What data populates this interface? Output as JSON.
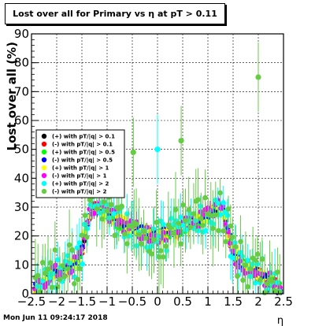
{
  "title": "Lost over all for Primary vs   η at pT > 0.11",
  "footer_date": "Mon Jun 11 09:24:17 2018",
  "colors": {
    "black": "#000000",
    "red": "#ff0000",
    "green": "#00ff00",
    "blue": "#0000ff",
    "yellow": "#ffff00",
    "magenta": "#ff00ff",
    "cyan": "#00ffff",
    "olive": "#66cc44"
  },
  "chart_data": {
    "type": "scatter",
    "title": "Lost over all for Primary vs   η at pT > 0.11",
    "xlabel": "η",
    "ylabel": "Lost over all (%)",
    "xlim": [
      -2.5,
      2.5
    ],
    "ylim": [
      0,
      90
    ],
    "x_ticks": [
      -2.5,
      -2,
      -1.5,
      -1,
      -0.5,
      0,
      0.5,
      1,
      1.5,
      2,
      2.5
    ],
    "x_tick_labels": [
      "−2.5",
      "−2",
      "−1.5",
      "−1",
      "−0.5",
      "0",
      "0.5",
      "1",
      "1.5",
      "2",
      "2.5"
    ],
    "y_ticks": [
      0,
      10,
      20,
      30,
      40,
      50,
      60,
      70,
      80,
      90
    ],
    "y_tick_labels": [
      "0",
      "10",
      "20",
      "30",
      "40",
      "50",
      "60",
      "70",
      "80",
      "90"
    ],
    "grid": true,
    "legend_position": "left",
    "series": [
      {
        "name": "(+) with pT/|q| > 0.1",
        "color": "#000000",
        "noise": 1.5,
        "err": 1
      },
      {
        "name": "(-) with pT/|q| > 0.1",
        "color": "#ff0000",
        "noise": 1.5,
        "err": 1
      },
      {
        "name": "(+) with pT/|q| > 0.5",
        "color": "#00ff00",
        "noise": 2,
        "err": 1.5
      },
      {
        "name": "(-) with pT/|q| > 0.5",
        "color": "#0000ff",
        "noise": 2,
        "err": 1.5
      },
      {
        "name": "(+) with pT/|q| > 1",
        "color": "#ffff00",
        "noise": 2.5,
        "err": 2
      },
      {
        "name": "(-) with pT/|q| > 1",
        "color": "#ff00ff",
        "noise": 3,
        "err": 2.5
      },
      {
        "name": "(+) with pT/|q| > 2",
        "color": "#00ffff",
        "noise": 6,
        "err": 6
      },
      {
        "name": "(-) with pT/|q| > 2",
        "color": "#66cc44",
        "noise": 8,
        "err": 9
      }
    ],
    "profile": {
      "x": [
        -2.45,
        -2.2,
        -2.0,
        -1.8,
        -1.6,
        -1.5,
        -1.4,
        -1.3,
        -1.2,
        -1.1,
        -1.0,
        -0.8,
        -0.6,
        -0.4,
        -0.2,
        0.0,
        0.2,
        0.4,
        0.6,
        0.8,
        1.0,
        1.1,
        1.2,
        1.3,
        1.4,
        1.5,
        1.7,
        1.9,
        2.1,
        2.3,
        2.45
      ],
      "y": [
        1,
        5,
        8,
        9,
        11,
        15,
        24,
        30,
        30,
        29,
        28,
        25,
        23,
        22,
        21,
        20,
        21,
        22,
        24,
        25,
        27,
        29,
        30,
        28,
        22,
        14,
        10,
        8,
        6,
        4,
        1
      ]
    },
    "outliers": [
      {
        "x": 2.0,
        "y": 75,
        "color": "#66cc44"
      },
      {
        "x": 0.47,
        "y": 53,
        "color": "#66cc44"
      },
      {
        "x": -0.48,
        "y": 49,
        "color": "#66cc44"
      },
      {
        "x": 0.0,
        "y": 50,
        "color": "#00ffff"
      }
    ]
  }
}
